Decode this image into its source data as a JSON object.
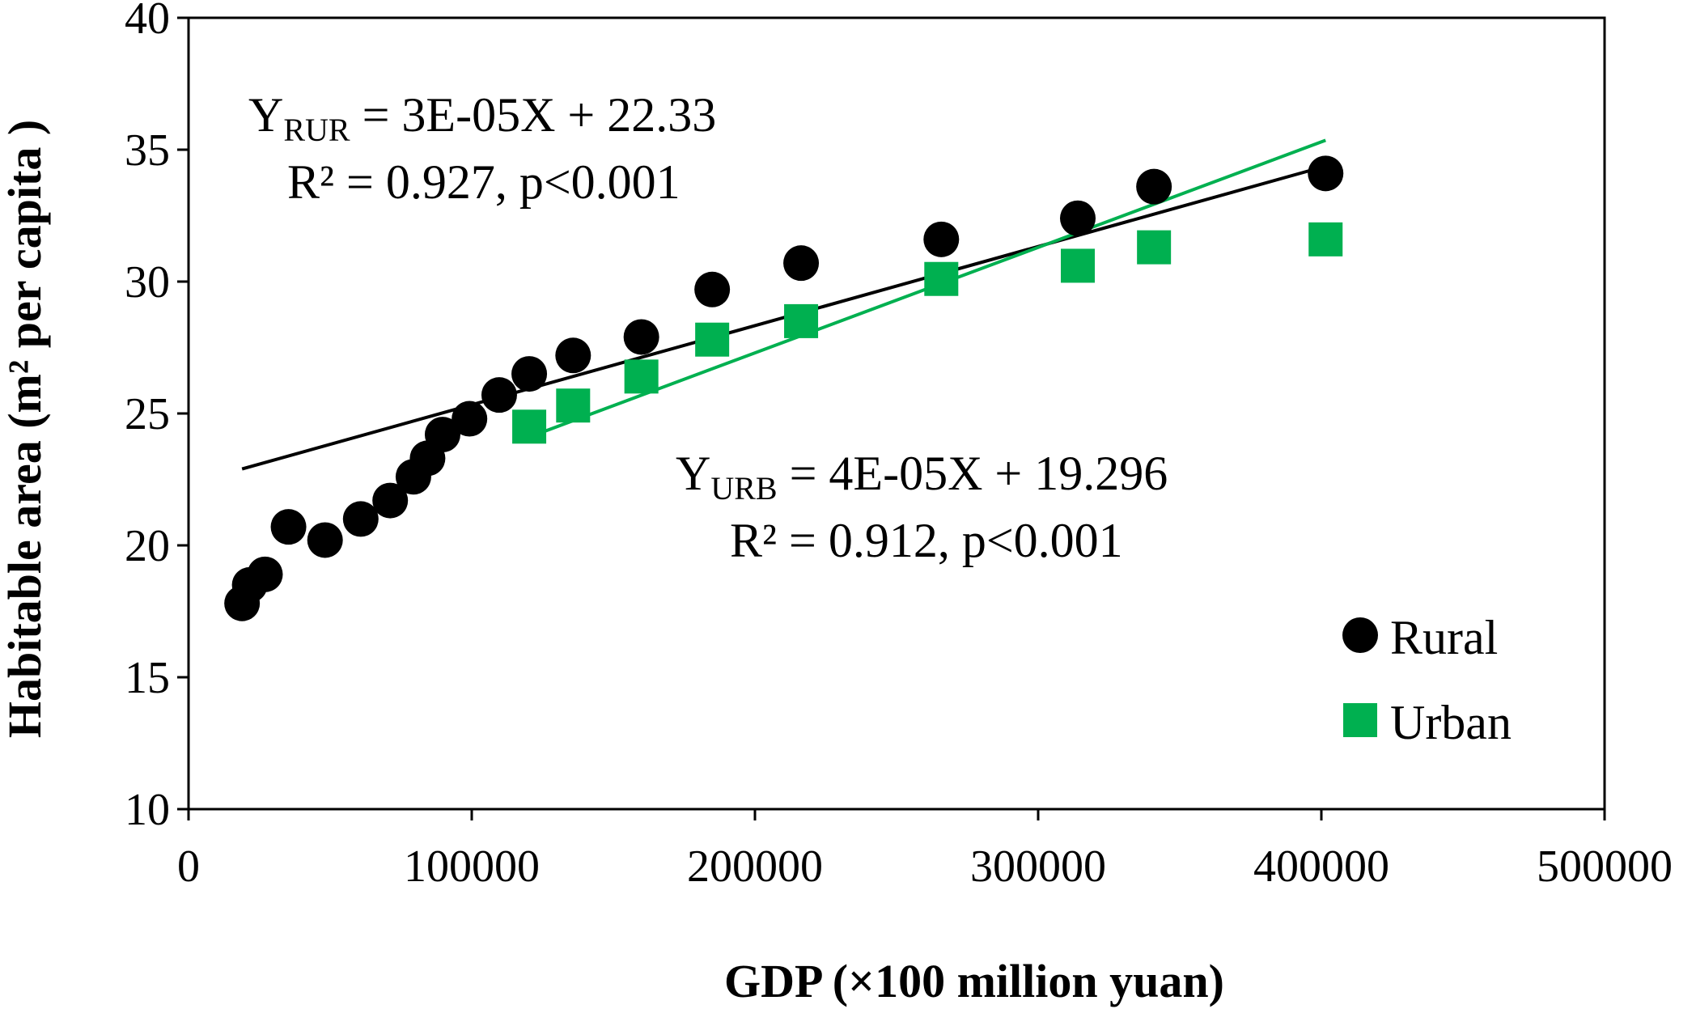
{
  "chart_data": {
    "type": "scatter",
    "title": "",
    "xlabel": "GDP (×100 million yuan)",
    "ylabel": "Habitable area (m² per capita )",
    "xlim": [
      0,
      500000
    ],
    "ylim": [
      10,
      40
    ],
    "x_ticks": [
      "0",
      "100000",
      "200000",
      "300000",
      "400000",
      "500000"
    ],
    "y_ticks": [
      "10",
      "15",
      "20",
      "25",
      "30",
      "35",
      "40"
    ],
    "grid": false,
    "legend_position": "bottom-right",
    "colors": {
      "rural": "#000000",
      "urban": "#00b050"
    },
    "series": [
      {
        "name": "Rural",
        "marker": "circle",
        "points": [
          [
            18900,
            17.8
          ],
          [
            21600,
            18.5
          ],
          [
            27000,
            18.9
          ],
          [
            35300,
            20.7
          ],
          [
            48200,
            20.2
          ],
          [
            60800,
            21.0
          ],
          [
            71200,
            21.7
          ],
          [
            79400,
            22.6
          ],
          [
            84400,
            23.3
          ],
          [
            89700,
            24.2
          ],
          [
            99200,
            24.8
          ],
          [
            109700,
            25.7
          ],
          [
            120300,
            26.5
          ],
          [
            135800,
            27.2
          ],
          [
            159900,
            27.9
          ],
          [
            184900,
            29.7
          ],
          [
            216300,
            30.7
          ],
          [
            265800,
            31.6
          ],
          [
            314000,
            32.4
          ],
          [
            340900,
            33.6
          ],
          [
            401500,
            34.1
          ]
        ],
        "trend": {
          "x_start": 18900,
          "x_end": 401500,
          "slope": 3e-05,
          "intercept": 22.33
        }
      },
      {
        "name": "Urban",
        "marker": "square",
        "points": [
          [
            120300,
            24.5
          ],
          [
            135800,
            25.3
          ],
          [
            159900,
            26.4
          ],
          [
            184900,
            27.8
          ],
          [
            216300,
            28.5
          ],
          [
            265800,
            30.1
          ],
          [
            314000,
            30.6
          ],
          [
            340900,
            31.3
          ],
          [
            401500,
            31.6
          ]
        ],
        "trend": {
          "x_start": 120300,
          "x_end": 401500,
          "slope": 4e-05,
          "intercept": 19.296
        }
      }
    ],
    "annotations": {
      "rural_eq": {
        "y": "Y",
        "sub": "RUR",
        "rest": " = 3E-05X + 22.33",
        "r2": "R² = 0.927, p<0.001"
      },
      "urban_eq": {
        "y": "Y",
        "sub": "URB",
        "rest": " = 4E-05X + 19.296",
        "r2": "R² = 0.912, p<0.001"
      }
    }
  }
}
